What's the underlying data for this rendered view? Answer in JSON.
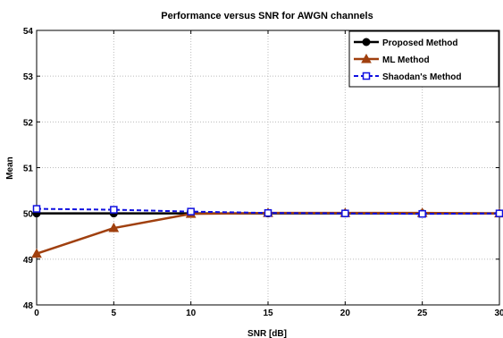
{
  "chart_data": {
    "type": "line",
    "title": "Performance versus SNR for AWGN channels",
    "xlabel": "SNR [dB]",
    "ylabel": "Mean",
    "xlim": [
      0,
      30
    ],
    "ylim": [
      48,
      54
    ],
    "xticks": [
      0,
      5,
      10,
      15,
      20,
      25,
      30
    ],
    "yticks": [
      48,
      49,
      50,
      51,
      52,
      53,
      54
    ],
    "grid": true,
    "legend_position": "top-right",
    "x": [
      0,
      5,
      10,
      15,
      20,
      25,
      30
    ],
    "series": [
      {
        "name": "Proposed Method",
        "values": [
          50.0,
          50.0,
          50.0,
          50.0,
          50.0,
          50.0,
          50.0
        ],
        "color": "#000000",
        "marker": "circle",
        "line": "solid"
      },
      {
        "name": "ML Method",
        "values": [
          49.12,
          49.68,
          49.99,
          50.01,
          50.01,
          50.01,
          50.0
        ],
        "color": "#a0400f",
        "marker": "triangle",
        "line": "solid"
      },
      {
        "name": "Shaodan's Method",
        "values": [
          50.1,
          50.08,
          50.04,
          50.01,
          50.0,
          49.99,
          50.0
        ],
        "color": "#1010e0",
        "marker": "square",
        "line": "dashed"
      }
    ]
  }
}
